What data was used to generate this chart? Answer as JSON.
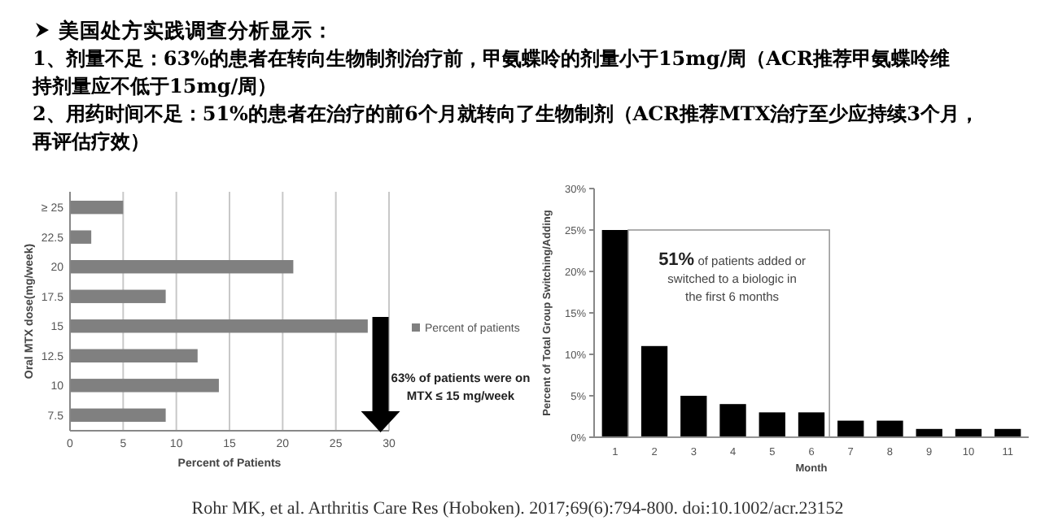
{
  "chart_data": [
    {
      "type": "other",
      "title": "美国处方实践调查分析显示：",
      "annotations": [
        "1、剂量不足：63%的患者在转向生物制剂治疗前，甲氨蝶呤的剂量小于15mg/周（ACR推荐甲氨蝶呤维",
        "持剂量应不低于15mg/周）",
        "2、用药时间不足：51%的患者在治疗的前6个月就转向了生物制剂（ACR推荐MTX治疗至少应持续3个月，",
        "再评估疗效）",
        "Rohr MK, et al.  Arthritis Care Res (Hoboken). 2017;69(6):794-800. doi:10.1002/acr.23152"
      ]
    },
    {
      "type": "bar",
      "orientation": "horizontal",
      "categories": [
        "≥ 25",
        "22.5",
        "20",
        "17.5",
        "15",
        "12.5",
        "10",
        "7.5"
      ],
      "series": [
        {
          "name": "Percent of patients",
          "color": "#808080",
          "values": [
            5,
            2,
            21,
            9,
            28,
            12,
            14,
            9
          ]
        }
      ],
      "xlim": [
        0,
        30
      ],
      "xticks": [
        0,
        5,
        10,
        15,
        20,
        25,
        30
      ],
      "grid": "x",
      "legend": "right",
      "xlabel": "Percent of Patients",
      "ylabel": "Oral MTX dose(mg/week)",
      "annotations": [
        "63% of patients were on MTX ≤ 15 mg/week"
      ]
    },
    {
      "type": "bar",
      "categories": [
        "1",
        "2",
        "3",
        "4",
        "5",
        "6",
        "7",
        "8",
        "9",
        "10",
        "11"
      ],
      "series": [
        {
          "color": "#000000",
          "values": [
            25,
            11,
            5,
            4,
            3,
            3,
            2,
            2,
            1,
            1,
            1
          ]
        }
      ],
      "ylim": [
        0,
        30
      ],
      "yticks": [
        {
          "value": 0,
          "label": "0%"
        },
        {
          "value": 5,
          "label": "5%"
        },
        {
          "value": 10,
          "label": "10%"
        },
        {
          "value": 15,
          "label": "15%"
        },
        {
          "value": 20,
          "label": "20%"
        },
        {
          "value": 25,
          "label": "25%"
        },
        {
          "value": 30,
          "label": "30%"
        }
      ],
      "xlabel": "Month",
      "ylabel": "Percent of Total Group Switching/Adding",
      "annotations": [
        "51% of patients added or switched to a biologic in the first 6 months"
      ]
    }
  ]
}
